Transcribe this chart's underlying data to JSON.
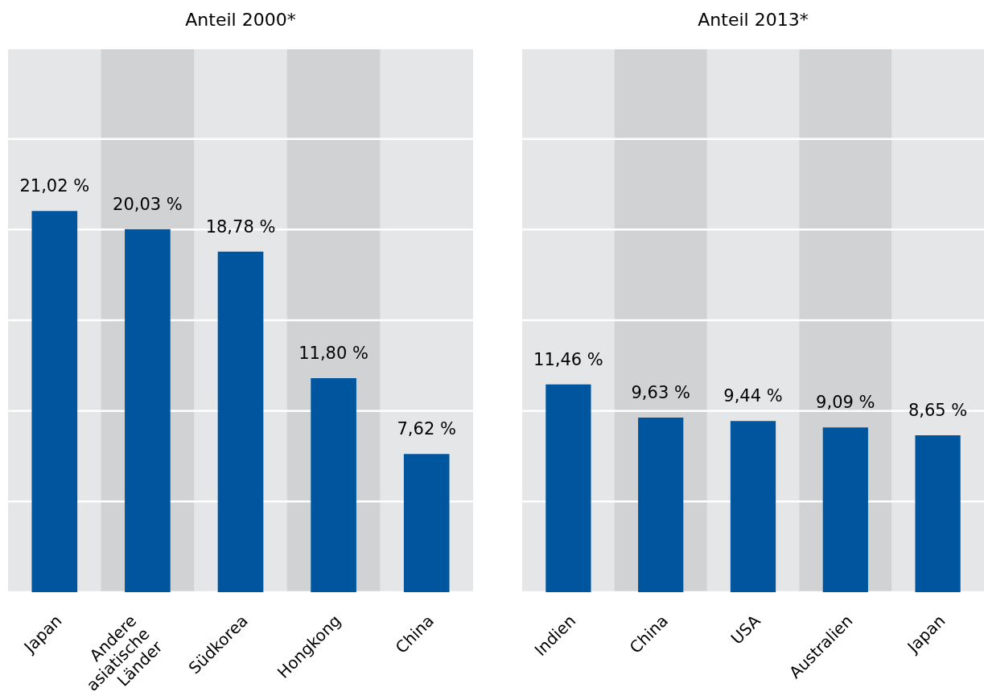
{
  "chart_data": [
    {
      "type": "bar",
      "title": "Anteil 2000*",
      "categories": [
        "Japan",
        "Andere asiatische Länder",
        "Südkorea",
        "Hongkong",
        "China"
      ],
      "values": [
        21.02,
        20.03,
        18.78,
        11.8,
        7.62
      ],
      "value_labels": [
        "21,02 %",
        "20,03 %",
        "18,78 %",
        "11,80 %",
        "7,62 %"
      ],
      "color": "#00559f",
      "ylim": [
        0,
        30
      ],
      "yticks": [
        0,
        5,
        10,
        15,
        20,
        25,
        30
      ],
      "tick_labels": "x",
      "grid": "y",
      "bands": [
        {
          "axis": "x",
          "from": "Andere asiatische Länder",
          "to": "Andere asiatische Länder",
          "color": "#d1d2d4"
        },
        {
          "axis": "x",
          "from": "Hongkong",
          "to": "Hongkong",
          "color": "#d1d2d4"
        }
      ]
    },
    {
      "type": "bar",
      "title": "Anteil 2013*",
      "categories": [
        "Indien",
        "China",
        "USA",
        "Australien",
        "Japan"
      ],
      "values": [
        11.46,
        9.63,
        9.44,
        9.09,
        8.65
      ],
      "value_labels": [
        "11,46 %",
        "9,63 %",
        "9,44 %",
        "9,09 %",
        "8,65 %"
      ],
      "color": "#00559f",
      "ylim": [
        0,
        30
      ],
      "yticks": [
        0,
        5,
        10,
        15,
        20,
        25,
        30
      ],
      "tick_labels": "x",
      "grid": "y",
      "bands": [
        {
          "axis": "x",
          "from": "China",
          "to": "China",
          "color": "#d1d2d4"
        },
        {
          "axis": "x",
          "from": "Australien",
          "to": "Australien",
          "color": "#d1d2d4"
        }
      ]
    }
  ]
}
